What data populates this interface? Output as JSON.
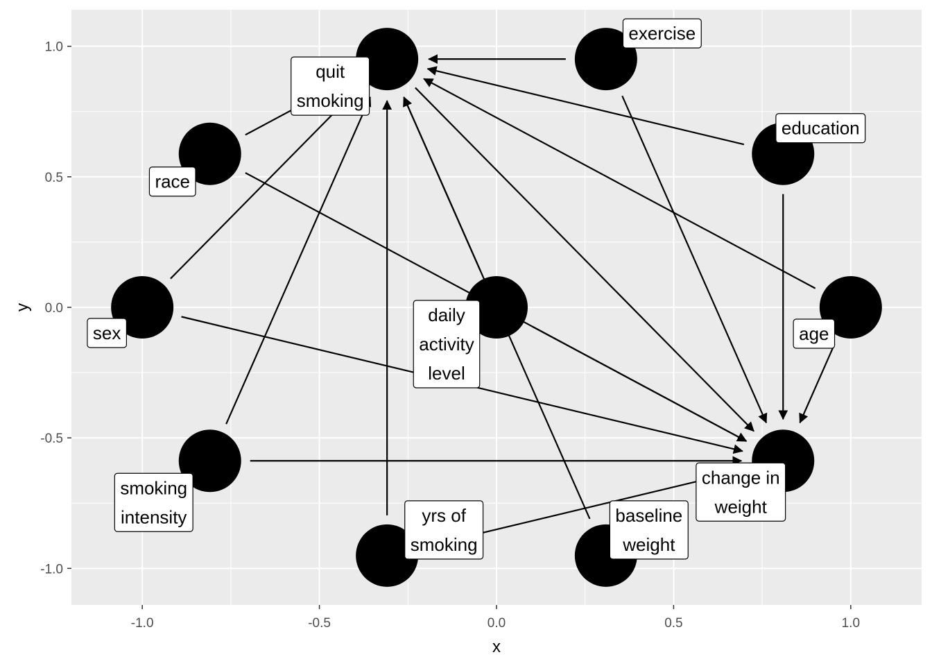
{
  "chart_data": {
    "type": "dag",
    "xlabel": "x",
    "ylabel": "y",
    "xlim": [
      -1.2,
      1.2
    ],
    "ylim": [
      -1.14,
      1.14
    ],
    "x_ticks": [
      -1.0,
      -0.5,
      0.0,
      0.5,
      1.0
    ],
    "x_tick_labels": [
      "-1.0",
      "-0.5",
      "0.0",
      "0.5",
      "1.0"
    ],
    "y_ticks": [
      1.0,
      0.5,
      0.0,
      -0.5,
      -1.0
    ],
    "y_tick_labels": [
      "1.0",
      "0.5",
      "0.0",
      "-0.5",
      "-1.0"
    ],
    "grid": true,
    "nodes": [
      {
        "id": "qsmk",
        "label_lines": [
          "quit",
          "smoking"
        ],
        "x": -0.309,
        "y": 0.951
      },
      {
        "id": "exercise",
        "label_lines": [
          "exercise"
        ],
        "x": 0.309,
        "y": 0.951
      },
      {
        "id": "education",
        "label_lines": [
          "education"
        ],
        "x": 0.809,
        "y": 0.588
      },
      {
        "id": "race",
        "label_lines": [
          "race"
        ],
        "x": -0.809,
        "y": 0.588
      },
      {
        "id": "sex",
        "label_lines": [
          "sex"
        ],
        "x": -1.0,
        "y": 0.0
      },
      {
        "id": "active",
        "label_lines": [
          "daily",
          "activity",
          "level"
        ],
        "x": 0.0,
        "y": 0.0
      },
      {
        "id": "age",
        "label_lines": [
          "age"
        ],
        "x": 1.0,
        "y": 0.0
      },
      {
        "id": "smokeintensity",
        "label_lines": [
          "smoking",
          "intensity"
        ],
        "x": -0.809,
        "y": -0.588
      },
      {
        "id": "wt82_71",
        "label_lines": [
          "change in",
          "weight"
        ],
        "x": 0.809,
        "y": -0.588
      },
      {
        "id": "smokeyrs",
        "label_lines": [
          "yrs of",
          "smoking"
        ],
        "x": -0.309,
        "y": -0.951
      },
      {
        "id": "wt71",
        "label_lines": [
          "baseline",
          "weight"
        ],
        "x": 0.309,
        "y": -0.951
      }
    ],
    "edges": [
      {
        "from": "exercise",
        "to": "qsmk"
      },
      {
        "from": "education",
        "to": "qsmk"
      },
      {
        "from": "age",
        "to": "qsmk"
      },
      {
        "from": "race",
        "to": "qsmk"
      },
      {
        "from": "sex",
        "to": "qsmk"
      },
      {
        "from": "smokeintensity",
        "to": "qsmk"
      },
      {
        "from": "smokeyrs",
        "to": "qsmk"
      },
      {
        "from": "active",
        "to": "qsmk"
      },
      {
        "from": "wt71",
        "to": "qsmk"
      },
      {
        "from": "qsmk",
        "to": "wt82_71"
      },
      {
        "from": "exercise",
        "to": "wt82_71"
      },
      {
        "from": "education",
        "to": "wt82_71"
      },
      {
        "from": "age",
        "to": "wt82_71"
      },
      {
        "from": "race",
        "to": "wt82_71"
      },
      {
        "from": "sex",
        "to": "wt82_71"
      },
      {
        "from": "smokeintensity",
        "to": "wt82_71"
      },
      {
        "from": "smokeyrs",
        "to": "wt82_71"
      },
      {
        "from": "active",
        "to": "wt82_71"
      }
    ]
  }
}
